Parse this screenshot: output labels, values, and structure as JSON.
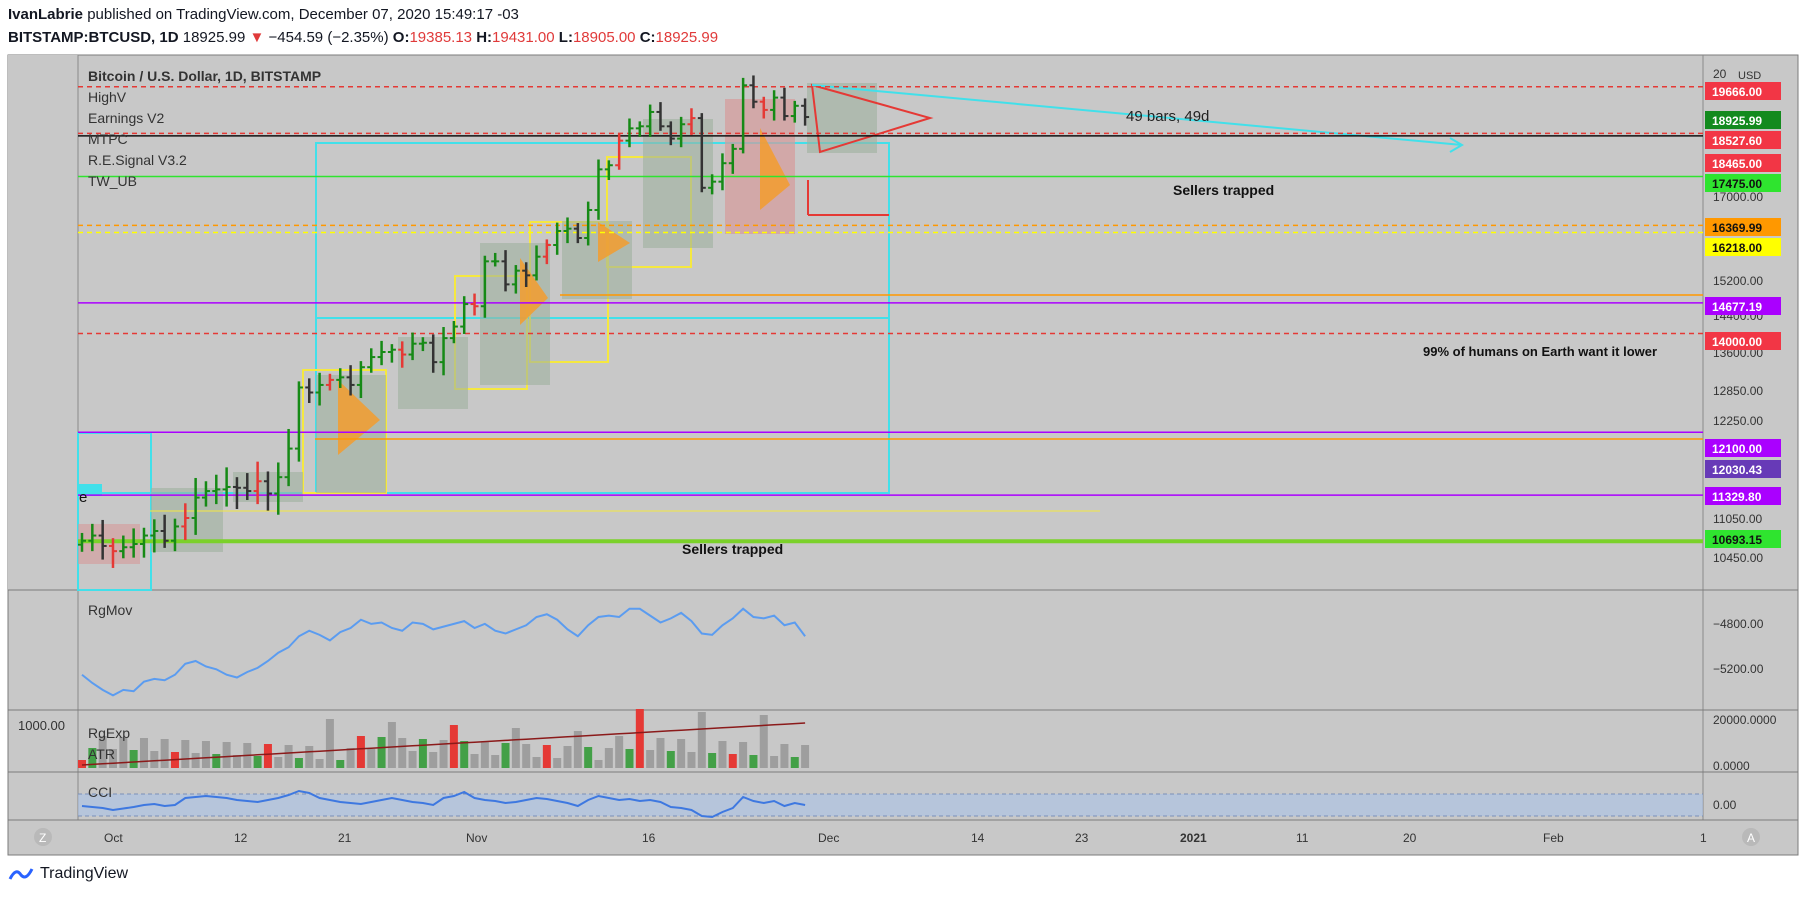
{
  "header": {
    "author": "IvanLabrie",
    "published": "published on TradingView.com, December 07, 2020 15:49:17 -03",
    "symbol": "BITSTAMP:BTCUSD, 1D",
    "last": "18925.99",
    "change": "−454.59 (−2.35%)",
    "o_label": "O:",
    "o_val": "19385.13",
    "h_label": "H:",
    "h_val": "19431.00",
    "l_label": "L:",
    "l_val": "18905.00",
    "c_label": "C:",
    "c_val": "18925.99"
  },
  "pane_title": "Bitcoin / U.S. Dollar, 1D, BITSTAMP",
  "indicators": [
    "HighV",
    "Earnings V2",
    "MTPC",
    "R.E.Signal V3.2",
    "TW_UB"
  ],
  "currency": "USD",
  "annotations": {
    "sellers_top": "Sellers trapped",
    "sellers_bottom": "Sellers trapped",
    "humans": "99% of humans on Earth want it lower",
    "bars": "49 bars, 49d",
    "left_edge": "e"
  },
  "subpanes": {
    "rgmov": "RgMov",
    "rgexp": "RgExp",
    "atr": "ATR",
    "cci": "CCI",
    "left_value": "1000.00"
  },
  "footer": {
    "brand": "TradingView"
  },
  "nav": {
    "left": "Z",
    "right": "A"
  },
  "chart_data": {
    "type": "candlestick",
    "ylim": [
      10000,
      20300
    ],
    "y_ticks": [
      "20",
      "17000.00",
      "15200.00",
      "14400.00",
      "13600.00",
      "12850.00",
      "12250.00",
      "11050.00",
      "10450.00"
    ],
    "x_ticks": [
      "Oct",
      "12",
      "21",
      "Nov",
      "16",
      "Dec",
      "14",
      "23",
      "2021",
      "11",
      "20",
      "Feb",
      "1"
    ],
    "price_tags": [
      {
        "label": "19666.00",
        "color": "#f23645"
      },
      {
        "label": "18925.99",
        "color": "#138a1e"
      },
      {
        "label": "18527.60",
        "color": "#f23645"
      },
      {
        "label": "18465.00",
        "color": "#f23645"
      },
      {
        "label": "17475.00",
        "color": "#2fe42f"
      },
      {
        "label": "16369.99",
        "color": "#ff9800"
      },
      {
        "label": "16218.00",
        "color": "#ffff00"
      },
      {
        "label": "14677.19",
        "color": "#aa00ff"
      },
      {
        "label": "14000.00",
        "color": "#f23645"
      },
      {
        "label": "12100.00",
        "color": "#aa00ff"
      },
      {
        "label": "12030.43",
        "color": "#673ab7"
      },
      {
        "label": "11329.80",
        "color": "#aa00ff"
      },
      {
        "label": "10693.15",
        "color": "#2fe42f"
      }
    ],
    "series": [
      {
        "name": "BTCUSD",
        "close": [
          10700,
          10780,
          10620,
          10540,
          10600,
          10650,
          10780,
          10850,
          10700,
          10920,
          11050,
          11300,
          11380,
          11400,
          11430,
          11420,
          11380,
          11500,
          11350,
          11550,
          11900,
          12900,
          12800,
          12950,
          13050,
          13100,
          12950,
          13300,
          13500,
          13600,
          13650,
          13550,
          13780,
          13800,
          13400,
          13900,
          14150,
          14650,
          14600,
          15600,
          15600,
          15100,
          15400,
          15300,
          15700,
          15950,
          16250,
          16300,
          16100,
          16700,
          17650,
          17750,
          18350,
          18650,
          18700,
          19050,
          18700,
          18400,
          18750,
          18900,
          17200,
          17350,
          17800,
          18150,
          19700,
          19300,
          19100,
          19400,
          18950,
          19200,
          18925.99
        ]
      },
      {
        "name": "RgMov",
        "values": [
          -5180,
          -5240,
          -5290,
          -5330,
          -5290,
          -5300,
          -5230,
          -5210,
          -5220,
          -5180,
          -5100,
          -5080,
          -5120,
          -5140,
          -5180,
          -5200,
          -5160,
          -5130,
          -5080,
          -5020,
          -4980,
          -4900,
          -4860,
          -4890,
          -4930,
          -4870,
          -4840,
          -4780,
          -4810,
          -4800,
          -4840,
          -4860,
          -4800,
          -4810,
          -4850,
          -4830,
          -4810,
          -4790,
          -4840,
          -4810,
          -4860,
          -4880,
          -4850,
          -4820,
          -4760,
          -4740,
          -4780,
          -4850,
          -4900,
          -4820,
          -4760,
          -4750,
          -4760,
          -4700,
          -4700,
          -4750,
          -4800,
          -4770,
          -4730,
          -4790,
          -4880,
          -4890,
          -4820,
          -4770,
          -4700,
          -4760,
          -4770,
          -4750,
          -4820,
          -4800,
          -4900
        ]
      },
      {
        "name": "CCI",
        "values": [
          -20,
          -30,
          -40,
          -60,
          -45,
          -30,
          -10,
          0,
          -20,
          -10,
          60,
          70,
          80,
          70,
          60,
          40,
          30,
          20,
          40,
          60,
          90,
          130,
          110,
          60,
          40,
          20,
          10,
          0,
          20,
          40,
          60,
          40,
          20,
          10,
          -10,
          60,
          80,
          120,
          60,
          40,
          30,
          10,
          20,
          40,
          60,
          50,
          30,
          10,
          -20,
          40,
          80,
          60,
          40,
          50,
          30,
          40,
          20,
          -30,
          -40,
          -60,
          -120,
          -130,
          -80,
          -40,
          70,
          30,
          10,
          30,
          -20,
          10,
          -10
        ]
      }
    ]
  }
}
